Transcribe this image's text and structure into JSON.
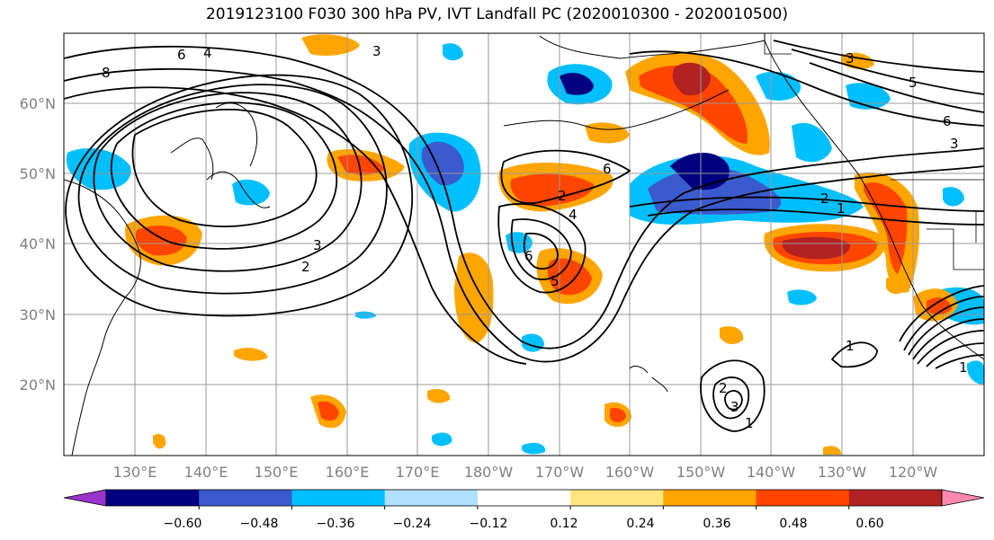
{
  "title": "2019123100 F030 300 hPa PV, IVT Landfall PC (2020010300 - 2020010500)",
  "lat_labels": [
    "60°N",
    "50°N",
    "40°N",
    "30°N",
    "20°N"
  ],
  "lon_labels": [
    "130°E",
    "140°E",
    "150°E",
    "160°E",
    "170°E",
    "180°W",
    "170°W",
    "160°W",
    "150°W",
    "140°W",
    "130°W",
    "120°W"
  ],
  "colorbar": {
    "ticks": [
      "−0.60",
      "−0.48",
      "−0.36",
      "−0.24",
      "−0.12",
      "0.12",
      "0.24",
      "0.36",
      "0.48",
      "0.60"
    ],
    "colors": [
      "#9933cc",
      "#000080",
      "#3a5acd",
      "#00bfff",
      "#b0e0ff",
      "#ffffff",
      "#ffe680",
      "#ffa500",
      "#ff4500",
      "#b22222",
      "#ff88b0"
    ]
  },
  "contour_labels": [
    "8",
    "6",
    "4",
    "3",
    "2",
    "3",
    "2",
    "6",
    "6",
    "5",
    "4",
    "3",
    "5",
    "6",
    "3",
    "2",
    "1",
    "1",
    "1",
    "3",
    "2",
    "1"
  ]
}
